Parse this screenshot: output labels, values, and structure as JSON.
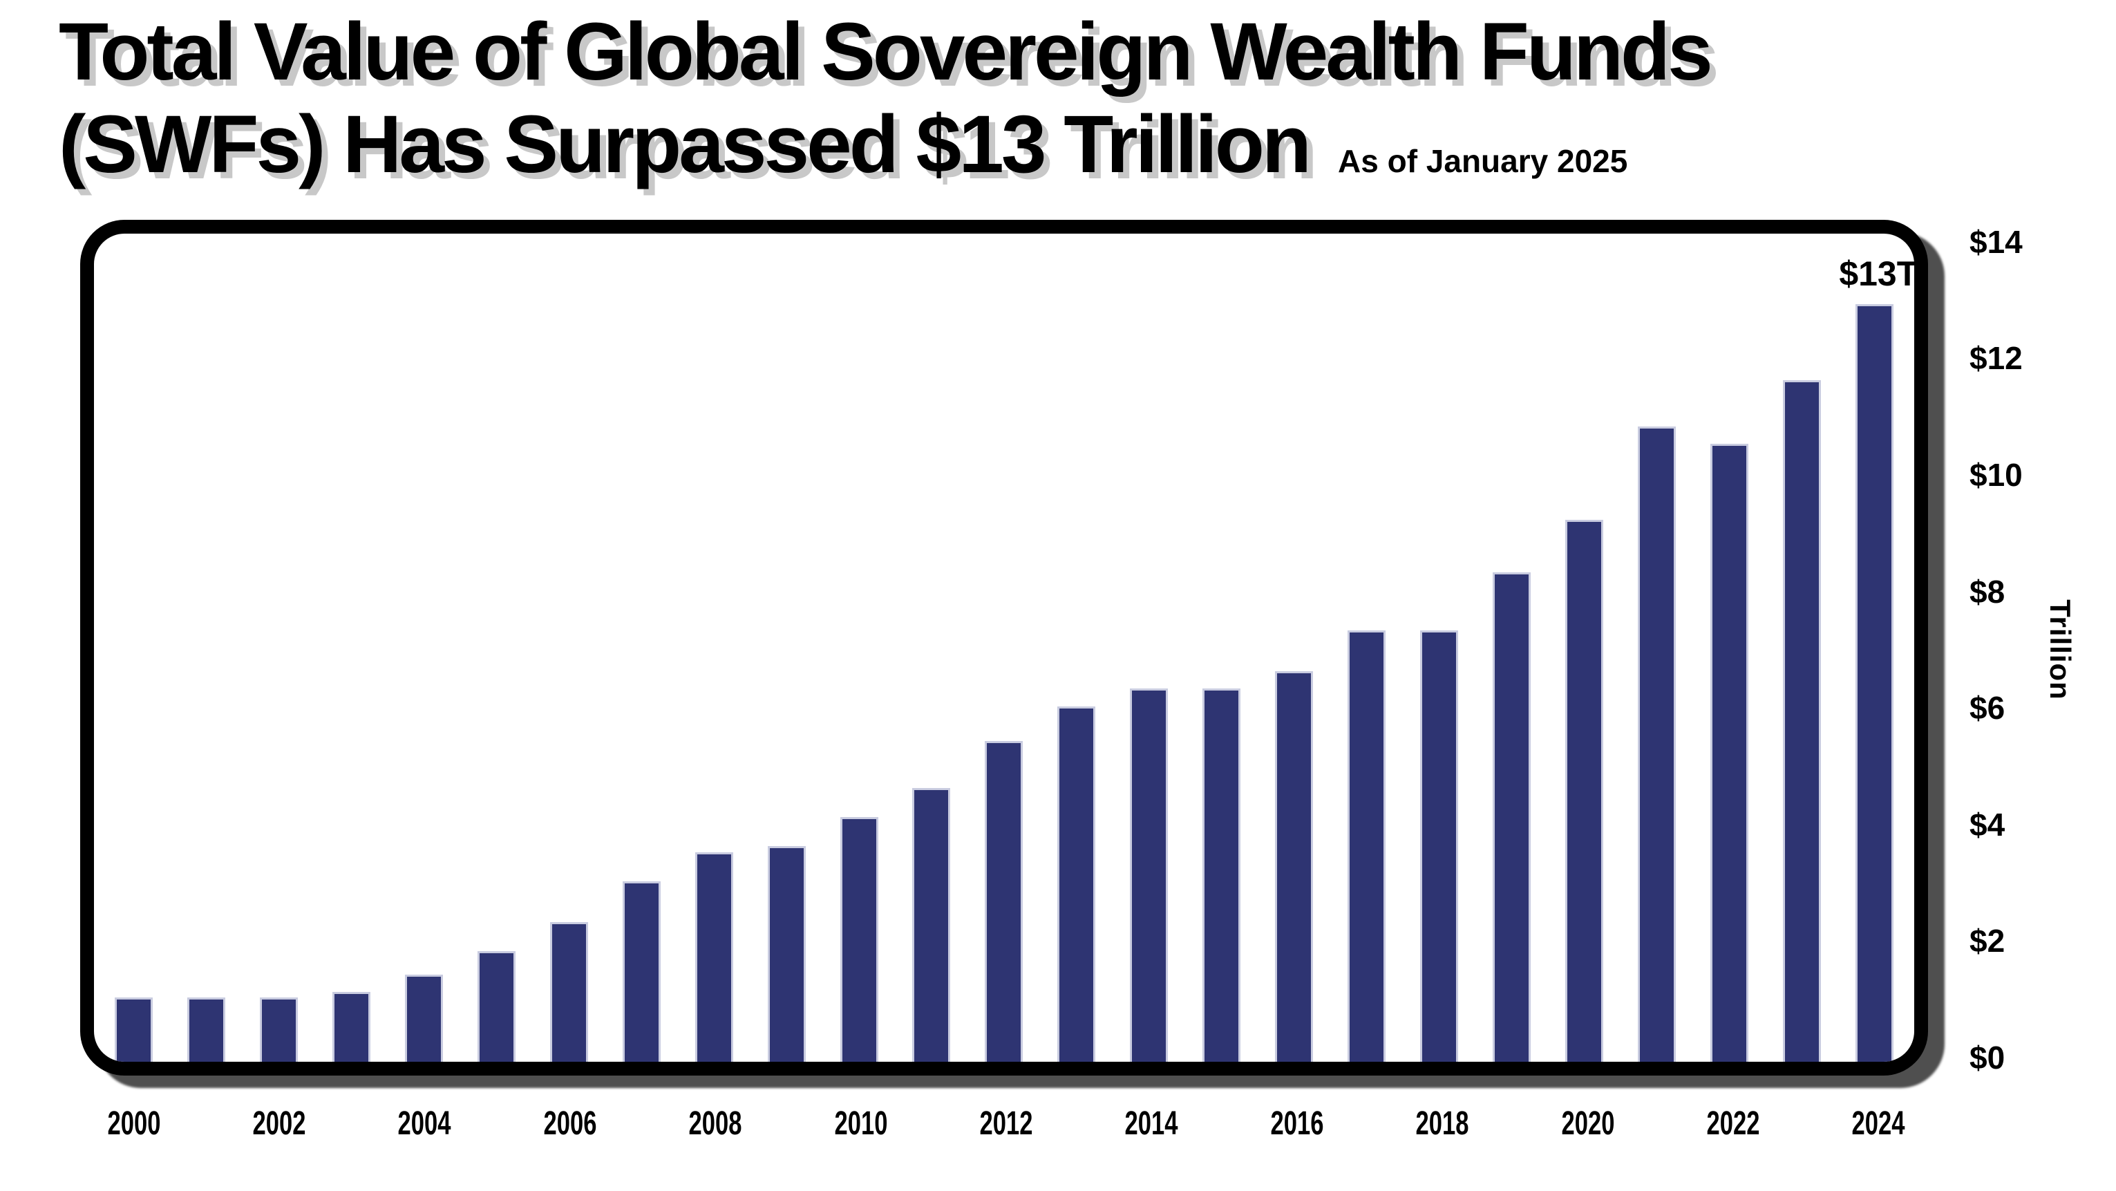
{
  "title": {
    "line1": "Total Value of Global Sovereign Wealth Funds",
    "line2": "(SWFs) Has Surpassed $13 Trillion",
    "as_of": "As of January 2025"
  },
  "chart_data": {
    "type": "bar",
    "title": "Total Value of Global Sovereign Wealth Funds (SWFs) Has Surpassed $13 Trillion",
    "subtitle": "As of January 2025",
    "unit": "USD trillions",
    "categories": [
      2000,
      2001,
      2002,
      2003,
      2004,
      2005,
      2006,
      2007,
      2008,
      2009,
      2010,
      2011,
      2012,
      2013,
      2014,
      2015,
      2016,
      2017,
      2018,
      2019,
      2020,
      2021,
      2022,
      2023,
      2024
    ],
    "values": [
      1.1,
      1.1,
      1.1,
      1.2,
      1.5,
      1.9,
      2.4,
      3.1,
      3.6,
      3.7,
      4.2,
      4.7,
      5.5,
      6.1,
      6.4,
      6.4,
      6.7,
      7.4,
      7.4,
      8.4,
      9.3,
      10.9,
      10.6,
      11.7,
      13.0
    ],
    "xlabel": "",
    "ylabel": "Trillion",
    "ylim": [
      0,
      14
    ],
    "y_ticks": [
      0,
      2,
      4,
      6,
      8,
      10,
      12,
      14
    ],
    "y_tick_labels": [
      "$0",
      "$2",
      "$4",
      "$6",
      "$8",
      "$10",
      "$12",
      "$14"
    ],
    "x_tick_years": [
      2000,
      2002,
      2004,
      2006,
      2008,
      2010,
      2012,
      2014,
      2016,
      2018,
      2020,
      2022,
      2024
    ],
    "annotation": {
      "text": "$13T",
      "year": 2024
    },
    "bar_color": "#2e3472",
    "grid": false,
    "legend": false
  }
}
